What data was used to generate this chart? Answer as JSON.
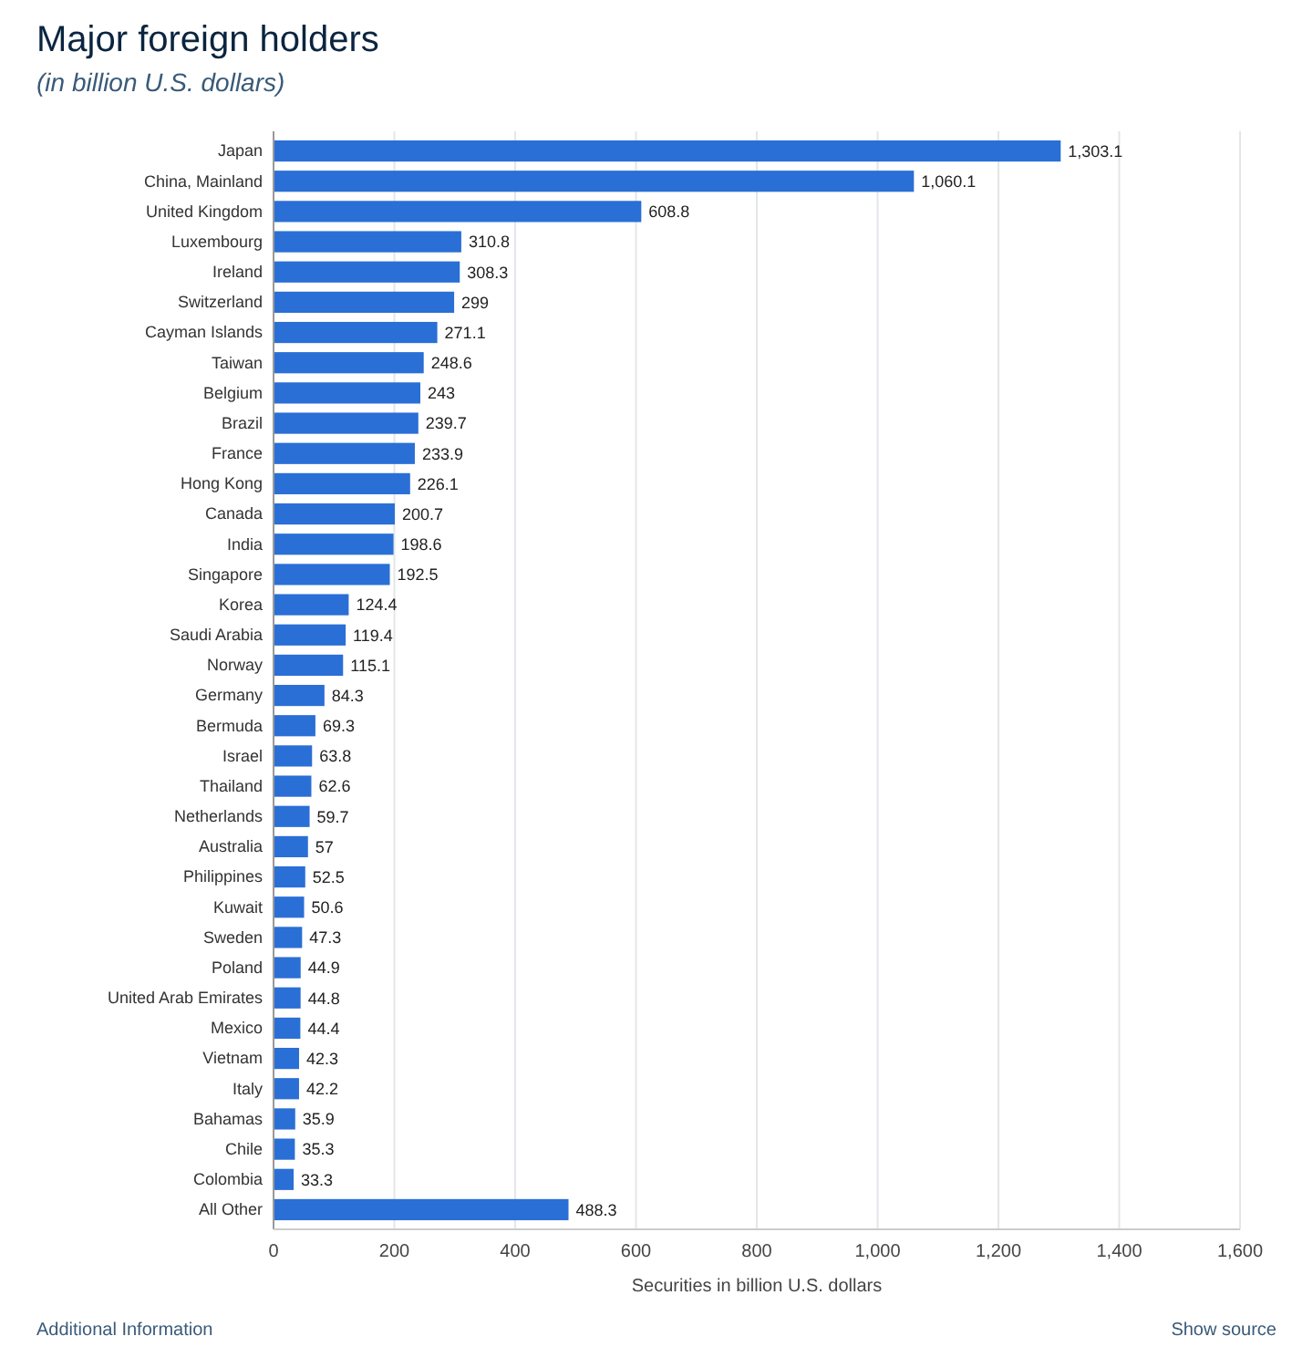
{
  "chart_data": {
    "type": "bar",
    "orientation": "horizontal",
    "title": "Major foreign holders",
    "subtitle": "(in billion U.S. dollars)",
    "xlabel": "Securities in billion U.S. dollars",
    "categories": [
      "Japan",
      "China, Mainland",
      "United Kingdom",
      "Luxembourg",
      "Ireland",
      "Switzerland",
      "Cayman Islands",
      "Taiwan",
      "Belgium",
      "Brazil",
      "France",
      "Hong Kong",
      "Canada",
      "India",
      "Singapore",
      "Korea",
      "Saudi Arabia",
      "Norway",
      "Germany",
      "Bermuda",
      "Israel",
      "Thailand",
      "Netherlands",
      "Australia",
      "Philippines",
      "Kuwait",
      "Sweden",
      "Poland",
      "United Arab Emirates",
      "Mexico",
      "Vietnam",
      "Italy",
      "Bahamas",
      "Chile",
      "Colombia",
      "All Other"
    ],
    "values": [
      1303.1,
      1060.1,
      608.8,
      310.8,
      308.3,
      299,
      271.1,
      248.6,
      243,
      239.7,
      233.9,
      226.1,
      200.7,
      198.6,
      192.5,
      124.4,
      119.4,
      115.1,
      84.3,
      69.3,
      63.8,
      62.6,
      59.7,
      57,
      52.5,
      50.6,
      47.3,
      44.9,
      44.8,
      44.4,
      42.3,
      42.2,
      35.9,
      35.3,
      33.3,
      488.3
    ],
    "value_labels": [
      "1,303.1",
      "1,060.1",
      "608.8",
      "310.8",
      "308.3",
      "299",
      "271.1",
      "248.6",
      "243",
      "239.7",
      "233.9",
      "226.1",
      "200.7",
      "198.6",
      "192.5",
      "124.4",
      "119.4",
      "115.1",
      "84.3",
      "69.3",
      "63.8",
      "62.6",
      "59.7",
      "57",
      "52.5",
      "50.6",
      "47.3",
      "44.9",
      "44.8",
      "44.4",
      "42.3",
      "42.2",
      "35.9",
      "35.3",
      "33.3",
      "488.3"
    ],
    "color": "#2a6fd6",
    "grid": "x",
    "xlim": [
      0,
      1600
    ],
    "xticks": [
      0,
      200,
      400,
      600,
      800,
      {
        "value": 1000,
        "label": "1,000"
      },
      {
        "value": 1200,
        "label": "1,200"
      },
      {
        "value": 1400,
        "label": "1,400"
      },
      {
        "value": 1600,
        "label": "1,600"
      }
    ],
    "annotations": [
      "Additional Information",
      "Show source"
    ]
  }
}
